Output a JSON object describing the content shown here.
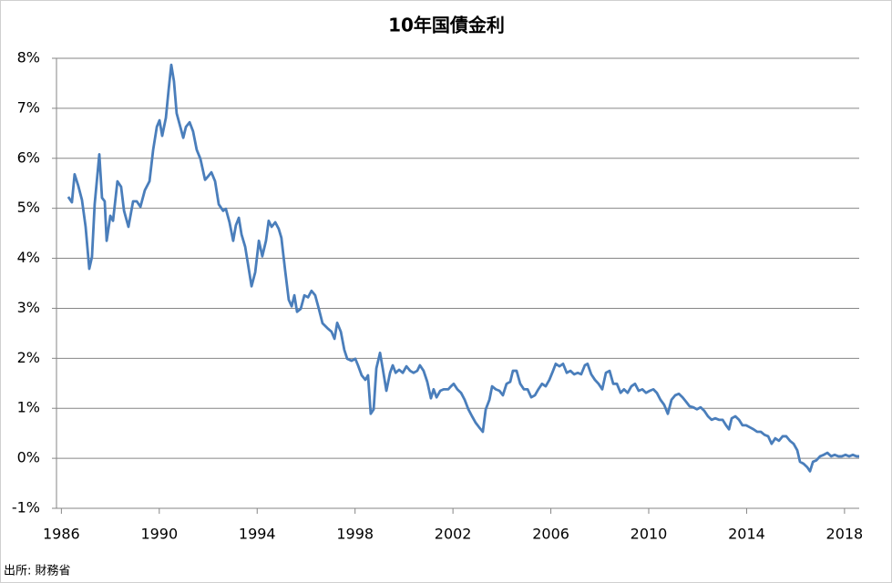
{
  "chart_data": {
    "type": "line",
    "title": "10年国債金利",
    "source": "出所: 財務省",
    "color": "#4a7ebb",
    "grid": true,
    "xlim": [
      1985.8,
      2018.6
    ],
    "xticks": [
      1986,
      1990,
      1994,
      1998,
      2002,
      2006,
      2010,
      2014,
      2018
    ],
    "ylim": [
      -1,
      8
    ],
    "yticks": [
      {
        "value": -1,
        "label": "-1%"
      },
      {
        "value": 0,
        "label": "0%"
      },
      {
        "value": 1,
        "label": "1%"
      },
      {
        "value": 2,
        "label": "2%"
      },
      {
        "value": 3,
        "label": "3%"
      },
      {
        "value": 4,
        "label": "4%"
      },
      {
        "value": 5,
        "label": "5%"
      },
      {
        "value": 6,
        "label": "6%"
      },
      {
        "value": 7,
        "label": "7%"
      },
      {
        "value": 8,
        "label": "8%"
      }
    ],
    "x": [
      1986.28,
      1986.43,
      1986.54,
      1986.69,
      1986.84,
      1986.99,
      1987.14,
      1987.25,
      1987.36,
      1987.55,
      1987.66,
      1987.77,
      1987.85,
      1988.0,
      1988.11,
      1988.29,
      1988.44,
      1988.56,
      1988.74,
      1988.93,
      1989.08,
      1989.23,
      1989.41,
      1989.6,
      1989.75,
      1989.9,
      1990.01,
      1990.12,
      1990.27,
      1990.38,
      1990.49,
      1990.6,
      1990.71,
      1990.86,
      1990.98,
      1991.09,
      1991.24,
      1991.38,
      1991.53,
      1991.68,
      1991.87,
      1991.98,
      1992.13,
      1992.28,
      1992.43,
      1992.61,
      1992.72,
      1992.87,
      1993.02,
      1993.13,
      1993.25,
      1993.36,
      1993.51,
      1993.62,
      1993.77,
      1993.92,
      1994.07,
      1994.21,
      1994.36,
      1994.47,
      1994.59,
      1994.74,
      1994.88,
      1994.99,
      1995.14,
      1995.29,
      1995.41,
      1995.52,
      1995.63,
      1995.78,
      1995.93,
      1996.08,
      1996.22,
      1996.37,
      1996.52,
      1996.67,
      1996.9,
      1997.04,
      1997.16,
      1997.27,
      1997.42,
      1997.56,
      1997.68,
      1997.86,
      1998.01,
      1998.12,
      1998.27,
      1998.42,
      1998.53,
      1998.64,
      1998.76,
      1998.87,
      1999.02,
      1999.13,
      1999.28,
      1999.43,
      1999.54,
      1999.66,
      1999.8,
      1999.95,
      2000.1,
      2000.25,
      2000.39,
      2000.54,
      2000.65,
      2000.8,
      2000.95,
      2001.1,
      2001.21,
      2001.33,
      2001.48,
      2001.62,
      2001.81,
      2001.92,
      2002.03,
      2002.18,
      2002.33,
      2002.48,
      2002.63,
      2002.78,
      2002.93,
      2003.07,
      2003.22,
      2003.34,
      2003.49,
      2003.6,
      2003.75,
      2003.9,
      2004.04,
      2004.19,
      2004.34,
      2004.45,
      2004.6,
      2004.75,
      2004.9,
      2005.05,
      2005.2,
      2005.35,
      2005.49,
      2005.64,
      2005.79,
      2005.94,
      2006.09,
      2006.2,
      2006.35,
      2006.5,
      2006.65,
      2006.8,
      2006.95,
      2007.1,
      2007.24,
      2007.39,
      2007.5,
      2007.65,
      2007.8,
      2007.95,
      2008.1,
      2008.25,
      2008.4,
      2008.55,
      2008.7,
      2008.85,
      2008.99,
      2009.14,
      2009.29,
      2009.44,
      2009.59,
      2009.74,
      2009.89,
      2010.04,
      2010.19,
      2010.33,
      2010.48,
      2010.63,
      2010.78,
      2010.93,
      2011.08,
      2011.23,
      2011.38,
      2011.53,
      2011.67,
      2011.82,
      2011.97,
      2012.12,
      2012.27,
      2012.42,
      2012.57,
      2012.72,
      2012.87,
      2013.02,
      2013.16,
      2013.28,
      2013.39,
      2013.54,
      2013.69,
      2013.83,
      2013.98,
      2014.13,
      2014.28,
      2014.43,
      2014.58,
      2014.73,
      2014.88,
      2015.02,
      2015.17,
      2015.32,
      2015.47,
      2015.62,
      2015.77,
      2015.92,
      2016.07,
      2016.18,
      2016.33,
      2016.48,
      2016.59,
      2016.71,
      2016.85,
      2017.0,
      2017.15,
      2017.3,
      2017.45,
      2017.6,
      2017.75,
      2017.89,
      2018.04,
      2018.19,
      2018.34,
      2018.49,
      2018.6
    ],
    "values": [
      5.23,
      5.12,
      5.68,
      5.45,
      5.17,
      4.63,
      3.79,
      4.03,
      5.08,
      6.08,
      5.21,
      5.14,
      4.35,
      4.85,
      4.75,
      5.54,
      5.43,
      4.95,
      4.63,
      5.14,
      5.14,
      5.03,
      5.36,
      5.54,
      6.17,
      6.63,
      6.76,
      6.45,
      6.81,
      7.36,
      7.87,
      7.54,
      6.9,
      6.63,
      6.41,
      6.63,
      6.72,
      6.54,
      6.17,
      5.99,
      5.57,
      5.63,
      5.72,
      5.54,
      5.08,
      4.95,
      4.99,
      4.72,
      4.35,
      4.66,
      4.81,
      4.48,
      4.23,
      3.9,
      3.44,
      3.72,
      4.35,
      4.04,
      4.35,
      4.75,
      4.63,
      4.72,
      4.59,
      4.41,
      3.77,
      3.17,
      3.04,
      3.26,
      2.93,
      2.99,
      3.26,
      3.22,
      3.35,
      3.26,
      2.99,
      2.7,
      2.59,
      2.53,
      2.39,
      2.71,
      2.53,
      2.17,
      1.99,
      1.95,
      1.99,
      1.86,
      1.66,
      1.57,
      1.66,
      0.89,
      0.98,
      1.8,
      2.11,
      1.8,
      1.35,
      1.71,
      1.86,
      1.71,
      1.77,
      1.71,
      1.84,
      1.75,
      1.71,
      1.75,
      1.86,
      1.75,
      1.53,
      1.2,
      1.38,
      1.22,
      1.35,
      1.38,
      1.38,
      1.44,
      1.49,
      1.38,
      1.31,
      1.17,
      0.98,
      0.84,
      0.71,
      0.62,
      0.53,
      0.98,
      1.17,
      1.44,
      1.38,
      1.35,
      1.26,
      1.49,
      1.53,
      1.75,
      1.75,
      1.49,
      1.38,
      1.38,
      1.22,
      1.26,
      1.38,
      1.49,
      1.44,
      1.57,
      1.75,
      1.89,
      1.84,
      1.89,
      1.71,
      1.75,
      1.68,
      1.71,
      1.68,
      1.86,
      1.89,
      1.68,
      1.57,
      1.49,
      1.38,
      1.71,
      1.75,
      1.49,
      1.49,
      1.31,
      1.38,
      1.31,
      1.44,
      1.49,
      1.35,
      1.38,
      1.31,
      1.35,
      1.38,
      1.31,
      1.17,
      1.07,
      0.89,
      1.17,
      1.26,
      1.29,
      1.22,
      1.13,
      1.04,
      1.02,
      0.98,
      1.02,
      0.95,
      0.84,
      0.77,
      0.8,
      0.77,
      0.77,
      0.66,
      0.58,
      0.8,
      0.84,
      0.77,
      0.66,
      0.66,
      0.62,
      0.58,
      0.53,
      0.53,
      0.47,
      0.44,
      0.29,
      0.4,
      0.35,
      0.44,
      0.44,
      0.35,
      0.29,
      0.16,
      -0.07,
      -0.11,
      -0.18,
      -0.26,
      -0.07,
      -0.04,
      0.04,
      0.07,
      0.11,
      0.04,
      0.07,
      0.04,
      0.04,
      0.07,
      0.04,
      0.07,
      0.04,
      0.04
    ]
  }
}
